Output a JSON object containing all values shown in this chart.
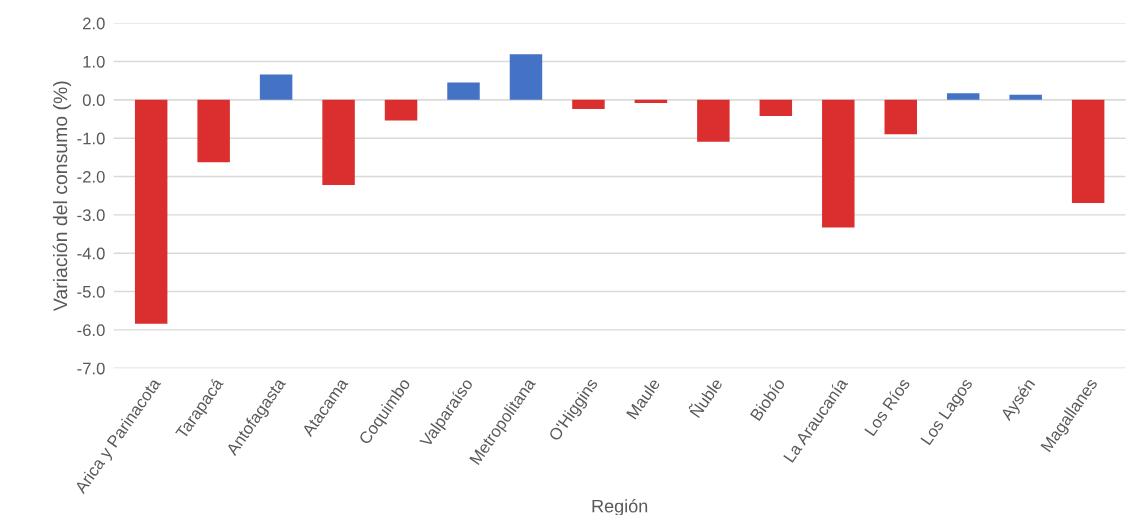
{
  "chart_data": {
    "type": "bar",
    "xlabel": "Región",
    "ylabel": "Variación del consumo (%)",
    "categories": [
      "Arica y Parinacota",
      "Tarapacá",
      "Antofagasta",
      "Atacama",
      "Coquimbo",
      "Valparaíso",
      "Metropolitana",
      "O'Higgins",
      "Maule",
      "Ñuble",
      "Biobío",
      "La Araucanía",
      "Los Ríos",
      "Los Lagos",
      "Aysén",
      "Magallanes"
    ],
    "values": [
      -5.84,
      -1.63,
      0.66,
      -2.22,
      -0.54,
      0.45,
      1.19,
      -0.24,
      -0.08,
      -1.09,
      -0.42,
      -3.33,
      -0.9,
      0.17,
      0.13,
      -2.69
    ],
    "colors": [
      "#db2e2e",
      "#db2e2e",
      "#4472c4",
      "#db2e2e",
      "#db2e2e",
      "#4472c4",
      "#4472c4",
      "#db2e2e",
      "#db2e2e",
      "#db2e2e",
      "#db2e2e",
      "#db2e2e",
      "#db2e2e",
      "#4472c4",
      "#4472c4",
      "#db2e2e"
    ],
    "ylim": [
      -7.0,
      2.0
    ],
    "yticks": [
      {
        "value": -7,
        "label": "-7.0"
      },
      {
        "value": -6,
        "label": "-6.0"
      },
      {
        "value": -5,
        "label": "-5.0"
      },
      {
        "value": -4,
        "label": "-4.0"
      },
      {
        "value": -3,
        "label": "-3.0"
      },
      {
        "value": -2,
        "label": "-2.0"
      },
      {
        "value": -1,
        "label": "-1.0"
      },
      {
        "value": 0,
        "label": "0.0"
      },
      {
        "value": 1,
        "label": "1.0"
      },
      {
        "value": 2,
        "label": "2.0"
      }
    ],
    "grid": "y"
  }
}
